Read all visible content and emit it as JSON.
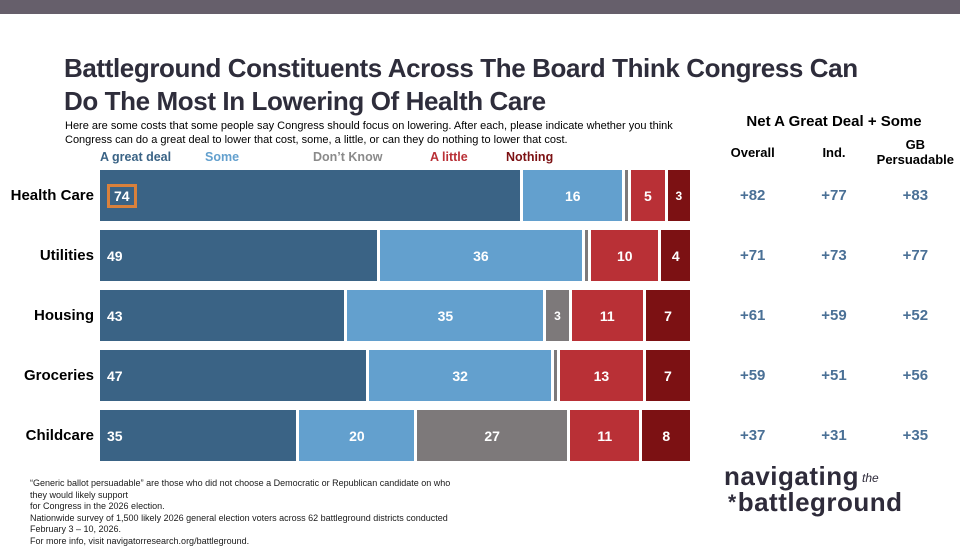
{
  "title_lines": [
    "Battleground Constituents Across The Board Think Congress Can",
    "Do The Most In Lowering Of Health Care"
  ],
  "subtitle_lines": [
    "Here are some costs that some people say Congress should focus on lowering. After each, please indicate whether you think",
    "Congress can do a great deal to lower that cost, some, a little, or can they do nothing to lower that cost."
  ],
  "legend": {
    "items": [
      {
        "label": "A great deal",
        "color": "#3A6385"
      },
      {
        "label": "Some",
        "color": "#63A0CE"
      },
      {
        "label": "Don’t Know",
        "color": "#8A8A8A"
      },
      {
        "label": "A little",
        "color": "#B93036"
      },
      {
        "label": "Nothing",
        "color": "#7C1113"
      }
    ]
  },
  "chart_data": {
    "type": "bar",
    "variant": "horizontal-stacked",
    "xlim": [
      0,
      100
    ],
    "value_label_min": 3,
    "categories": [
      "Health Care",
      "Utilities",
      "Housing",
      "Groceries",
      "Childcare"
    ],
    "series": [
      {
        "name": "A great deal",
        "color": "#3A6385",
        "values": [
          74,
          49,
          43,
          47,
          35
        ]
      },
      {
        "name": "Some",
        "color": "#63A0CE",
        "values": [
          16,
          36,
          35,
          32,
          20
        ]
      },
      {
        "name": "Don’t Know",
        "color": "#7D797A",
        "values": [
          1,
          1,
          3,
          1,
          27
        ]
      },
      {
        "name": "A little",
        "color": "#B93036",
        "values": [
          5,
          10,
          11,
          13,
          11
        ]
      },
      {
        "name": "Nothing",
        "color": "#7C1113",
        "values": [
          3,
          4,
          7,
          7,
          8
        ]
      }
    ],
    "note": "Don’t Know values of 1 are drawn as unlabeled thin slivers",
    "highlight": {
      "category": "Health Care",
      "series": "A great deal",
      "box_color": "#D9813C"
    }
  },
  "net_panel": {
    "title": "Net A Great Deal + Some",
    "columns": [
      "Overall",
      "Ind.",
      "GB Persuadable"
    ],
    "values_color": "#4A7096",
    "rows": [
      [
        "+82",
        "+77",
        "+83"
      ],
      [
        "+71",
        "+73",
        "+77"
      ],
      [
        "+61",
        "+59",
        "+52"
      ],
      [
        "+59",
        "+51",
        "+56"
      ],
      [
        "+37",
        "+31",
        "+35"
      ]
    ]
  },
  "footnote_lines": [
    "“Generic ballot persuadable” are those who did not choose a Democratic or Republican candidate on who they would likely support",
    "for Congress in the 2026 election.",
    "Nationwide survey of 1,500 likely 2026 general election voters across 62 battleground districts conducted February 3 – 10, 2026.",
    "For more info, visit navigatorresearch.org/battleground."
  ],
  "logo": {
    "word1": "navigating",
    "word2": "the",
    "mark": "*",
    "word3": "battleground"
  },
  "colors": {
    "top_bar": "#665F6B",
    "title": "#2E2D3B"
  }
}
